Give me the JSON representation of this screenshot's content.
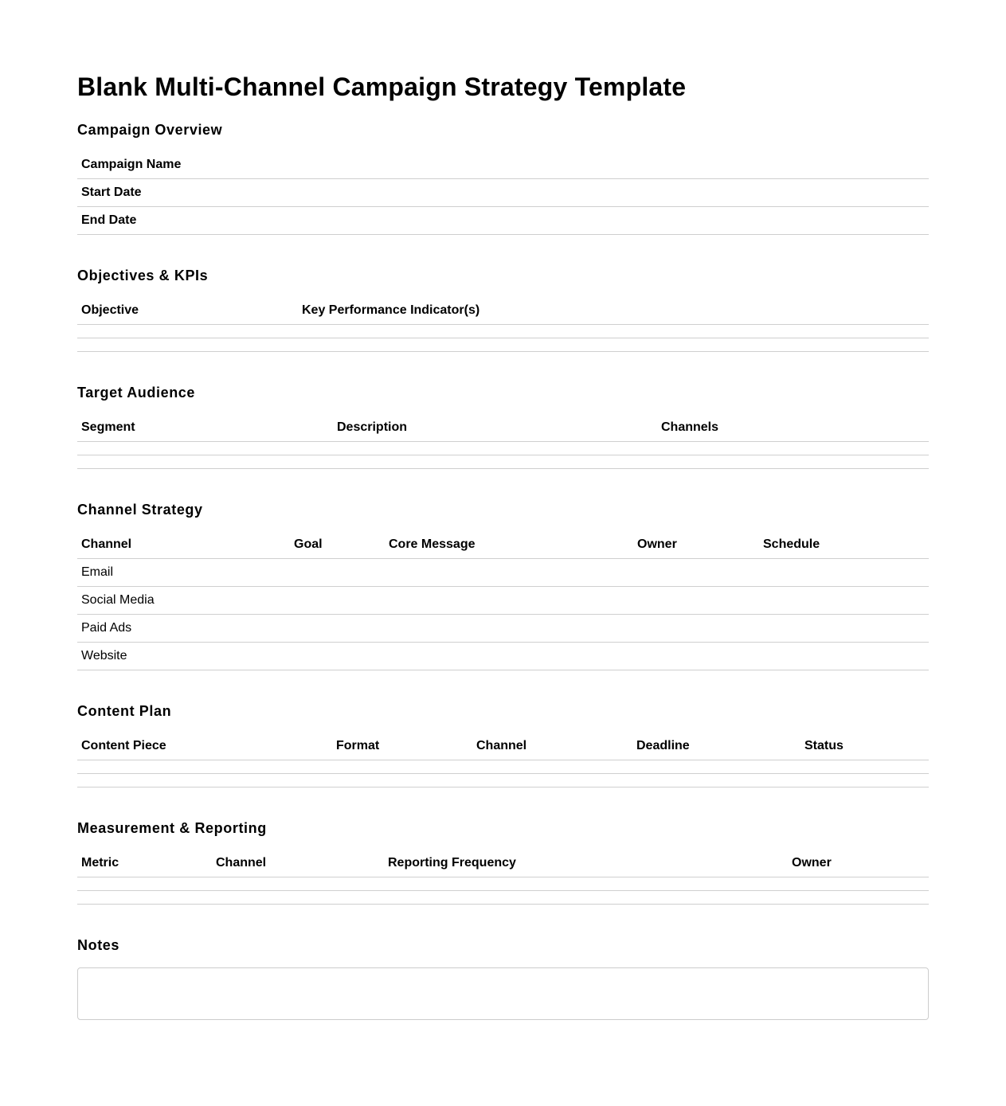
{
  "title": "Blank Multi-Channel Campaign Strategy Template",
  "sections": [
    {
      "heading": "Campaign Overview",
      "columns": [],
      "widths": [],
      "rows": [
        [
          "Campaign Name"
        ],
        [
          "Start Date"
        ],
        [
          "End Date"
        ]
      ],
      "row_header": true
    },
    {
      "heading": "Objectives & KPIs",
      "columns": [
        "Objective",
        "Key Performance Indicator(s)"
      ],
      "widths": [
        277
      ],
      "rows": [
        [],
        []
      ]
    },
    {
      "heading": "Target Audience",
      "columns": [
        "Segment",
        "Description",
        "Channels"
      ],
      "widths": [
        321,
        407
      ],
      "rows": [
        [],
        []
      ]
    },
    {
      "heading": "Channel Strategy",
      "columns": [
        "Channel",
        "Goal",
        "Core Message",
        "Owner",
        "Schedule"
      ],
      "widths": [
        267,
        119,
        312,
        158
      ],
      "rows": [
        [
          "Email"
        ],
        [
          "Social Media"
        ],
        [
          "Paid Ads"
        ],
        [
          "Website"
        ]
      ]
    },
    {
      "heading": "Content Plan",
      "columns": [
        "Content Piece",
        "Format",
        "Channel",
        "Deadline",
        "Status"
      ],
      "widths": [
        320,
        176,
        201,
        211
      ],
      "rows": [
        [],
        []
      ]
    },
    {
      "heading": "Measurement & Reporting",
      "columns": [
        "Metric",
        "Channel",
        "Reporting Frequency",
        "Owner"
      ],
      "widths": [
        169,
        216,
        507
      ],
      "rows": [
        [],
        []
      ]
    }
  ],
  "notes": {
    "heading": "Notes",
    "value": ""
  }
}
